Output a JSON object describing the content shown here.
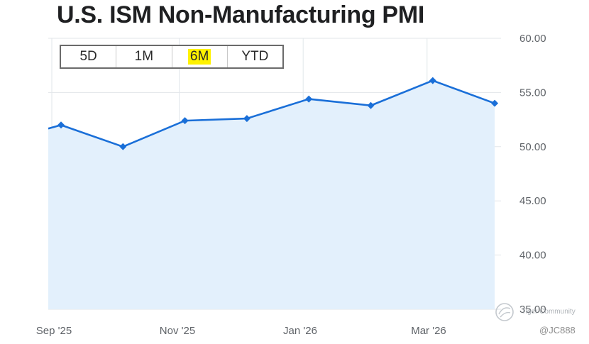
{
  "title": "U.S. ISM Non-Manufacturing PMI",
  "range_selector": {
    "options": [
      "5D",
      "1M",
      "6M",
      "YTD"
    ],
    "selected": "6M",
    "highlight_color": "#fff200"
  },
  "watermark": {
    "text": "Tiger Community",
    "handle": "@JC888"
  },
  "colors": {
    "line": "#1a6fd8",
    "area": "#e3f0fc",
    "grid": "#e2e6ea"
  },
  "chart_data": {
    "type": "area",
    "title": "U.S. ISM Non-Manufacturing PMI",
    "xlabel": "",
    "ylabel": "",
    "x": [
      "2025-09",
      "2025-10",
      "2025-11",
      "2025-12",
      "2026-01",
      "2026-02",
      "2026-03",
      "2026-04"
    ],
    "values": [
      52.0,
      50.0,
      52.4,
      52.6,
      54.4,
      53.8,
      56.1,
      54.0
    ],
    "line_enters_from_left": true,
    "ylim": [
      35,
      60
    ],
    "y_ticks": [
      "60.00",
      "55.00",
      "50.00",
      "45.00",
      "40.00",
      "35.00"
    ],
    "x_ticks": [
      "Sep '25",
      "Nov '25",
      "Jan '26",
      "Mar '26"
    ],
    "y_axis_position": "right",
    "grid": true,
    "markers": "diamond"
  }
}
